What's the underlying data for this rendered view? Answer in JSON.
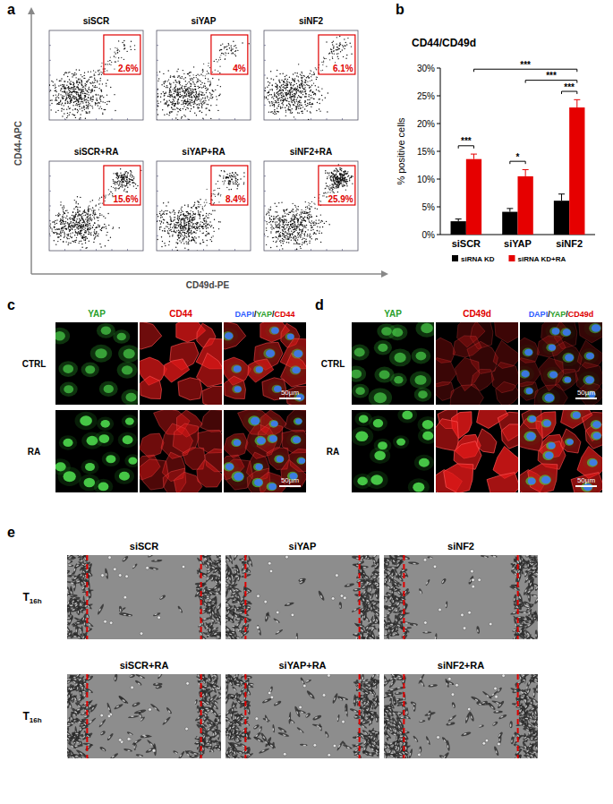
{
  "chart_data": {
    "type": "bar",
    "title": "CD44/CD49d",
    "y_label": "% positive cells",
    "categories": [
      "siSCR",
      "siYAP",
      "siNF2"
    ],
    "series": [
      {
        "name": "siRNA KD",
        "color": "#000000",
        "values": [
          2.4,
          4.1,
          6.1
        ],
        "errors": [
          0.4,
          0.6,
          1.2
        ]
      },
      {
        "name": "siRNA KD+RA",
        "color": "#e60000",
        "values": [
          13.6,
          10.5,
          22.9
        ],
        "errors": [
          0.9,
          1.2,
          1.4
        ]
      }
    ],
    "ylim": [
      0,
      30
    ],
    "yticks": [
      {
        "value": 0,
        "label": "0%"
      },
      {
        "value": 5,
        "label": "5%"
      },
      {
        "value": 10,
        "label": "10%"
      },
      {
        "value": 15,
        "label": "15%"
      },
      {
        "value": 20,
        "label": "20%"
      },
      {
        "value": 25,
        "label": "25%"
      },
      {
        "value": 30,
        "label": "30%"
      }
    ],
    "grid": false,
    "legend": "bottom",
    "significance": [
      {
        "label": "***",
        "bars": [
          [
            0,
            0
          ],
          [
            0,
            1
          ]
        ]
      },
      {
        "label": "*",
        "bars": [
          [
            1,
            0
          ],
          [
            1,
            1
          ]
        ]
      },
      {
        "label": "***",
        "bars": [
          [
            2,
            0
          ],
          [
            2,
            1
          ]
        ]
      },
      {
        "label": "***",
        "bars": [
          [
            1,
            1
          ],
          [
            2,
            1
          ]
        ]
      },
      {
        "label": "***",
        "bars": [
          [
            0,
            1
          ],
          [
            2,
            1
          ]
        ]
      }
    ]
  },
  "panel_labels": [
    "a",
    "b",
    "c",
    "d",
    "e"
  ],
  "flow": {
    "y_label": "CD44-APC",
    "x_label": "CD49d-PE",
    "plots": [
      {
        "title": "siSCR",
        "gate": "2.6%"
      },
      {
        "title": "siYAP",
        "gate": "4%"
      },
      {
        "title": "siNF2",
        "gate": "6.1%"
      },
      {
        "title": "siSCR+RA",
        "gate": "15.6%"
      },
      {
        "title": "siYAP+RA",
        "gate": "8.4%"
      },
      {
        "title": "siNF2+RA",
        "gate": "25.9%"
      }
    ]
  },
  "immuno": [
    {
      "channels": [
        "YAP",
        "CD44"
      ],
      "merge": [
        "DAPI",
        "YAP",
        "CD44"
      ],
      "separator": "/",
      "rows": [
        "CTRL",
        "RA"
      ],
      "scale_bar": "50µm"
    },
    {
      "channels": [
        "YAP",
        "CD49d"
      ],
      "merge": [
        "DAPI",
        "YAP",
        "CD49d"
      ],
      "separator": "/",
      "rows": [
        "CTRL",
        "RA"
      ],
      "scale_bar": "50µm"
    }
  ],
  "wound": {
    "time": {
      "main": "T",
      "sub": "16h"
    },
    "rows": [
      [
        "siSCR",
        "siYAP",
        "siNF2"
      ],
      [
        "siSCR+RA",
        "siYAP+RA",
        "siNF2+RA"
      ]
    ]
  }
}
